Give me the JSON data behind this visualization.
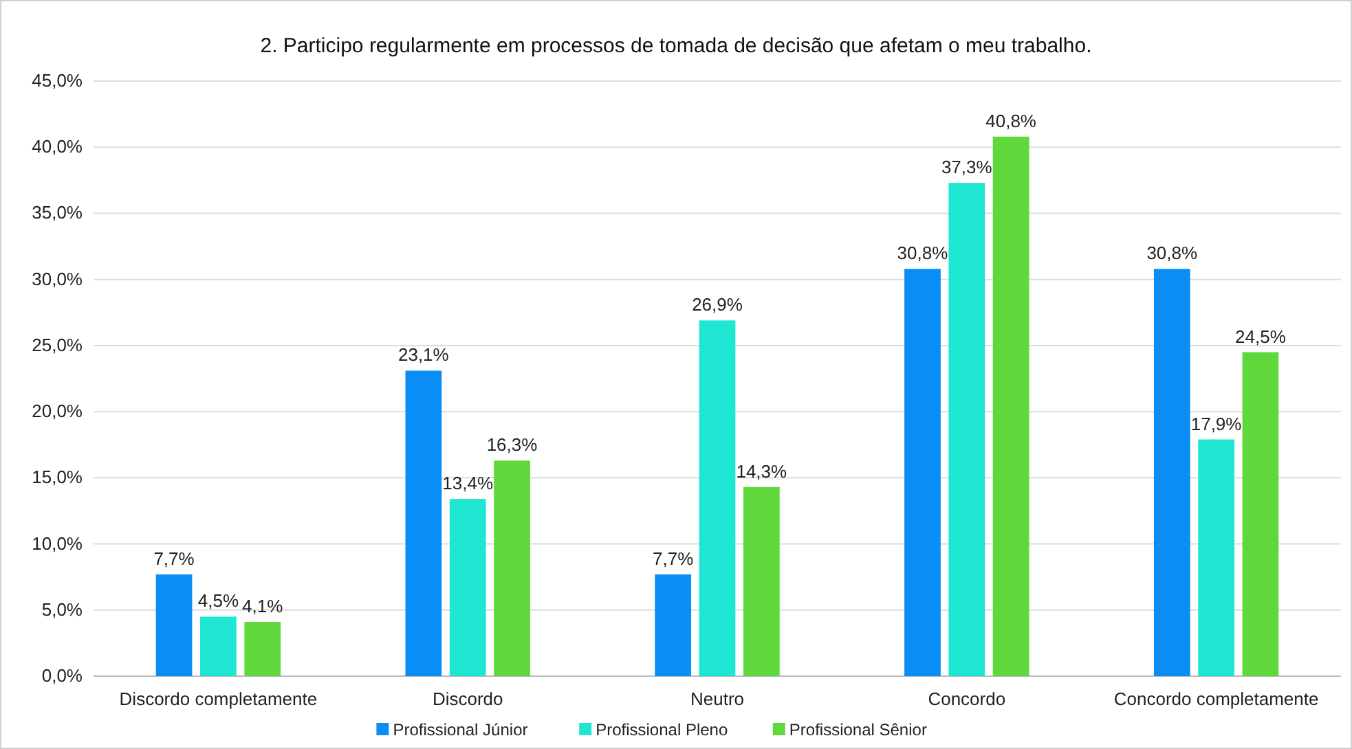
{
  "chart_data": {
    "type": "bar",
    "title": "2. Participo regularmente em processos de tomada de decisão que afetam o meu trabalho.",
    "categories": [
      "Discordo completamente",
      "Discordo",
      "Neutro",
      "Concordo",
      "Concordo completamente"
    ],
    "series": [
      {
        "name": "Profissional Júnior",
        "color": "#0a8ef5",
        "values": [
          7.7,
          23.1,
          7.7,
          30.8,
          30.8
        ],
        "value_labels": [
          "7,7%",
          "23,1%",
          "7,7%",
          "30,8%",
          "30,8%"
        ]
      },
      {
        "name": "Profissional Pleno",
        "color": "#1ee6d2",
        "values": [
          4.5,
          13.4,
          26.9,
          37.3,
          17.9
        ],
        "value_labels": [
          "4,5%",
          "13,4%",
          "26,9%",
          "37,3%",
          "17,9%"
        ]
      },
      {
        "name": "Profissional Sênior",
        "color": "#5fd83c",
        "values": [
          4.1,
          16.3,
          14.3,
          40.8,
          24.5
        ],
        "value_labels": [
          "4,1%",
          "16,3%",
          "14,3%",
          "40,8%",
          "24,5%"
        ]
      }
    ],
    "ylim": [
      0,
      45
    ],
    "yticks": [
      {
        "value": 0,
        "label": "0,0%"
      },
      {
        "value": 5,
        "label": "5,0%"
      },
      {
        "value": 10,
        "label": "10,0%"
      },
      {
        "value": 15,
        "label": "15,0%"
      },
      {
        "value": 20,
        "label": "20,0%"
      },
      {
        "value": 25,
        "label": "25,0%"
      },
      {
        "value": 30,
        "label": "30,0%"
      },
      {
        "value": 35,
        "label": "35,0%"
      },
      {
        "value": 40,
        "label": "40,0%"
      },
      {
        "value": 45,
        "label": "45,0%"
      }
    ],
    "grid": "y",
    "legend": "bottom"
  }
}
